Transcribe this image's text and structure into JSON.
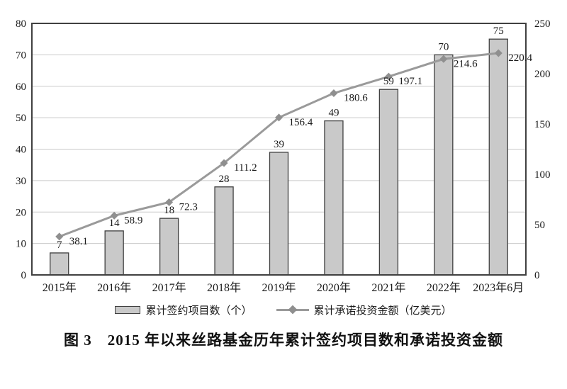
{
  "chart_data": {
    "type": "bar",
    "subtype": "combo-bar-line",
    "categories": [
      "2015年",
      "2016年",
      "2017年",
      "2018年",
      "2019年",
      "2020年",
      "2021年",
      "2022年",
      "2023年6月"
    ],
    "series": [
      {
        "name": "累计签约项目数（个）",
        "type": "bar",
        "axis": "left",
        "values": [
          7,
          14,
          18,
          28,
          39,
          49,
          59,
          70,
          75
        ],
        "fill": "#c9c9c9",
        "stroke": "#404040"
      },
      {
        "name": "累计承诺投资金额（亿美元）",
        "type": "line",
        "axis": "right",
        "values": [
          38.1,
          58.9,
          72.3,
          111.2,
          156.4,
          180.6,
          197.1,
          214.6,
          220.4
        ],
        "color": "#9a9a9a",
        "marker": "diamond",
        "marker_color": "#8f8f8f"
      }
    ],
    "left_axis": {
      "min": 0,
      "max": 80,
      "step": 10,
      "ticks": [
        "0",
        "10",
        "20",
        "30",
        "40",
        "50",
        "60",
        "70",
        "80"
      ]
    },
    "right_axis": {
      "min": 0,
      "max": 250,
      "step": 50,
      "ticks": [
        "0",
        "50",
        "100",
        "150",
        "200",
        "250"
      ]
    },
    "grid": true,
    "legend_position": "bottom",
    "title": "",
    "xlabel": "",
    "ylabel_left": "",
    "ylabel_right": "",
    "caption": "图 3　2015 年以来丝路基金历年累计签约项目数和承诺投资金额"
  },
  "colors": {
    "frame": "#404040",
    "gridline": "#c9c9c9",
    "text": "#1a1a1a",
    "background": "#ffffff",
    "bar_fill": "#c9c9c9",
    "line": "#9a9a9a",
    "marker": "#8f8f8f"
  }
}
